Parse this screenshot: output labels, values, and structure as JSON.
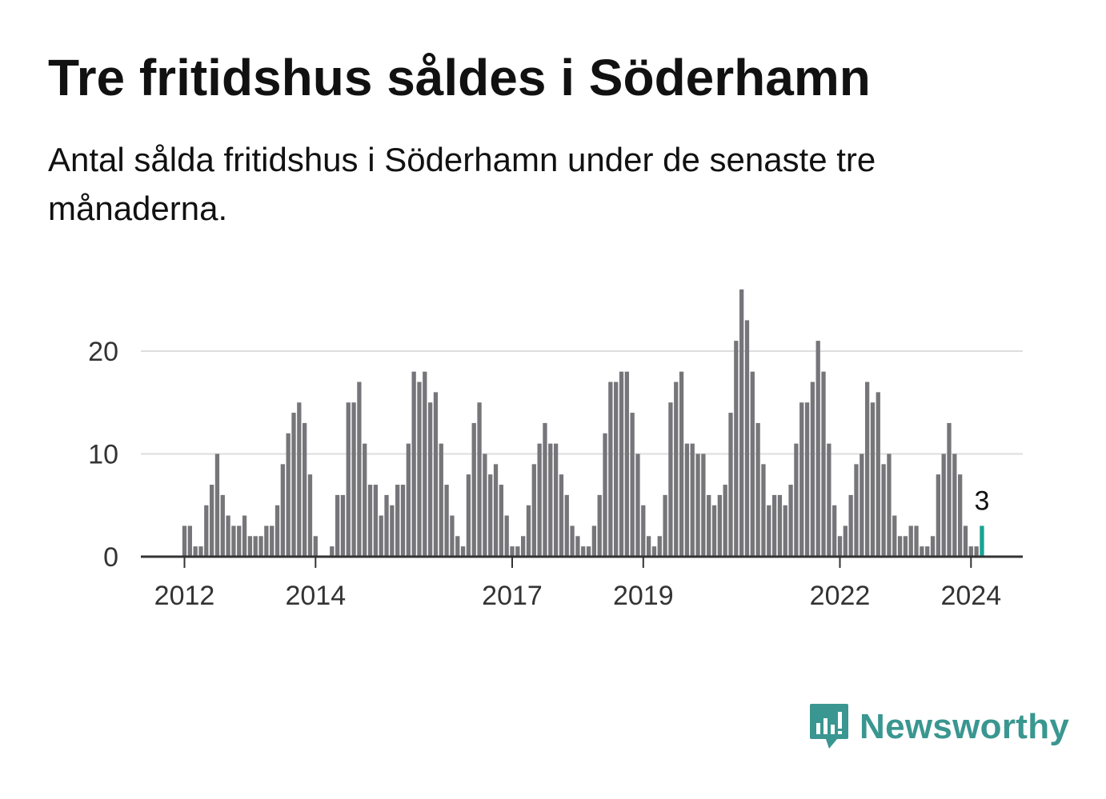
{
  "title": "Tre fritidshus såldes i Söderhamn",
  "subtitle": "Antal sålda fritidshus i Söderhamn under de senaste tre månaderna.",
  "brand": {
    "name": "Newsworthy",
    "color": "#3a9690",
    "icon": "newsworthy-logo-icon"
  },
  "colors": {
    "bar": "#76757a",
    "highlight": "#1aa391",
    "grid": "#dddddd",
    "axis": "#333333"
  },
  "chart_data": {
    "type": "bar",
    "title": "",
    "xlabel": "",
    "ylabel": "",
    "start": "2012-01",
    "ylim": [
      0,
      27
    ],
    "y_ticks": [
      0,
      10,
      20
    ],
    "x_ticks": [
      "2012",
      "2014",
      "2017",
      "2019",
      "2022",
      "2024"
    ],
    "grid": true,
    "legend": "none",
    "annotation": {
      "label": "3",
      "category": "2024-03"
    },
    "categories": [
      "2012-01",
      "2012-02",
      "2012-03",
      "2012-04",
      "2012-05",
      "2012-06",
      "2012-07",
      "2012-08",
      "2012-09",
      "2012-10",
      "2012-11",
      "2012-12",
      "2013-01",
      "2013-02",
      "2013-03",
      "2013-04",
      "2013-05",
      "2013-06",
      "2013-07",
      "2013-08",
      "2013-09",
      "2013-10",
      "2013-11",
      "2013-12",
      "2014-01",
      "2014-02",
      "2014-03",
      "2014-04",
      "2014-05",
      "2014-06",
      "2014-07",
      "2014-08",
      "2014-09",
      "2014-10",
      "2014-11",
      "2014-12",
      "2015-01",
      "2015-02",
      "2015-03",
      "2015-04",
      "2015-05",
      "2015-06",
      "2015-07",
      "2015-08",
      "2015-09",
      "2015-10",
      "2015-11",
      "2015-12",
      "2016-01",
      "2016-02",
      "2016-03",
      "2016-04",
      "2016-05",
      "2016-06",
      "2016-07",
      "2016-08",
      "2016-09",
      "2016-10",
      "2016-11",
      "2016-12",
      "2017-01",
      "2017-02",
      "2017-03",
      "2017-04",
      "2017-05",
      "2017-06",
      "2017-07",
      "2017-08",
      "2017-09",
      "2017-10",
      "2017-11",
      "2017-12",
      "2018-01",
      "2018-02",
      "2018-03",
      "2018-04",
      "2018-05",
      "2018-06",
      "2018-07",
      "2018-08",
      "2018-09",
      "2018-10",
      "2018-11",
      "2018-12",
      "2019-01",
      "2019-02",
      "2019-03",
      "2019-04",
      "2019-05",
      "2019-06",
      "2019-07",
      "2019-08",
      "2019-09",
      "2019-10",
      "2019-11",
      "2019-12",
      "2020-01",
      "2020-02",
      "2020-03",
      "2020-04",
      "2020-05",
      "2020-06",
      "2020-07",
      "2020-08",
      "2020-09",
      "2020-10",
      "2020-11",
      "2020-12",
      "2021-01",
      "2021-02",
      "2021-03",
      "2021-04",
      "2021-05",
      "2021-06",
      "2021-07",
      "2021-08",
      "2021-09",
      "2021-10",
      "2021-11",
      "2021-12",
      "2022-01",
      "2022-02",
      "2022-03",
      "2022-04",
      "2022-05",
      "2022-06",
      "2022-07",
      "2022-08",
      "2022-09",
      "2022-10",
      "2022-11",
      "2022-12",
      "2023-01",
      "2023-02",
      "2023-03",
      "2023-04",
      "2023-05",
      "2023-06",
      "2023-07",
      "2023-08",
      "2023-09",
      "2023-10",
      "2023-11",
      "2023-12",
      "2024-01",
      "2024-02",
      "2024-03"
    ],
    "values": [
      3,
      3,
      1,
      1,
      5,
      7,
      10,
      6,
      4,
      3,
      3,
      4,
      2,
      2,
      2,
      3,
      3,
      5,
      9,
      12,
      14,
      15,
      13,
      8,
      2,
      0,
      0,
      1,
      6,
      6,
      15,
      15,
      17,
      11,
      7,
      7,
      4,
      6,
      5,
      7,
      7,
      11,
      18,
      17,
      18,
      15,
      16,
      11,
      7,
      4,
      2,
      1,
      8,
      13,
      15,
      10,
      8,
      9,
      7,
      4,
      1,
      1,
      2,
      5,
      9,
      11,
      13,
      11,
      11,
      8,
      6,
      3,
      2,
      1,
      1,
      3,
      6,
      12,
      17,
      17,
      18,
      18,
      14,
      10,
      5,
      2,
      1,
      2,
      6,
      15,
      17,
      18,
      11,
      11,
      10,
      10,
      6,
      5,
      6,
      7,
      14,
      21,
      26,
      23,
      18,
      13,
      9,
      5,
      6,
      6,
      5,
      7,
      11,
      15,
      15,
      17,
      21,
      18,
      11,
      5,
      2,
      3,
      6,
      9,
      10,
      17,
      15,
      16,
      9,
      10,
      4,
      2,
      2,
      3,
      3,
      1,
      1,
      2,
      8,
      10,
      13,
      10,
      8,
      3,
      1,
      1,
      3
    ]
  }
}
